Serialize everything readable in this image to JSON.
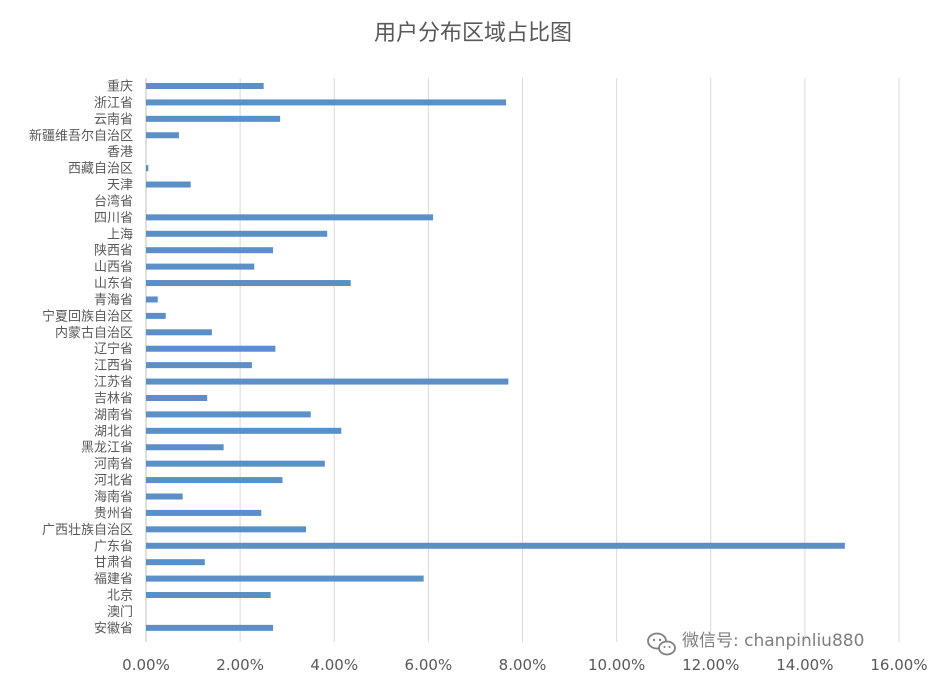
{
  "chart_data": {
    "type": "bar",
    "orientation": "horizontal",
    "title": "用户分布区域占比图",
    "xlabel": "",
    "ylabel": "",
    "xlim": [
      0,
      16
    ],
    "x_ticks": [
      "0.00%",
      "2.00%",
      "4.00%",
      "6.00%",
      "8.00%",
      "10.00%",
      "12.00%",
      "14.00%",
      "16.00%"
    ],
    "grid": true,
    "bar_color": "#5b8fc7",
    "categories": [
      "重庆",
      "浙江省",
      "云南省",
      "新疆维吾尔自治区",
      "香港",
      "西藏自治区",
      "天津",
      "台湾省",
      "四川省",
      "上海",
      "陕西省",
      "山西省",
      "山东省",
      "青海省",
      "宁夏回族自治区",
      "内蒙古自治区",
      "辽宁省",
      "江西省",
      "江苏省",
      "吉林省",
      "湖南省",
      "湖北省",
      "黑龙江省",
      "河南省",
      "河北省",
      "海南省",
      "贵州省",
      "广西壮族自治区",
      "广东省",
      "甘肃省",
      "福建省",
      "北京",
      "澳门",
      "安徽省"
    ],
    "values": [
      2.5,
      7.65,
      2.85,
      0.7,
      0.0,
      0.05,
      0.95,
      0.0,
      6.1,
      3.85,
      2.7,
      2.3,
      4.35,
      0.25,
      0.42,
      1.4,
      2.75,
      2.25,
      7.7,
      1.3,
      3.5,
      4.15,
      1.65,
      3.8,
      2.9,
      0.78,
      2.45,
      3.4,
      14.85,
      1.25,
      5.9,
      2.65,
      0.0,
      2.7
    ],
    "value_unit": "%"
  },
  "watermark": {
    "text": "微信号: chanpinliu880",
    "icon": "wechat-icon"
  }
}
